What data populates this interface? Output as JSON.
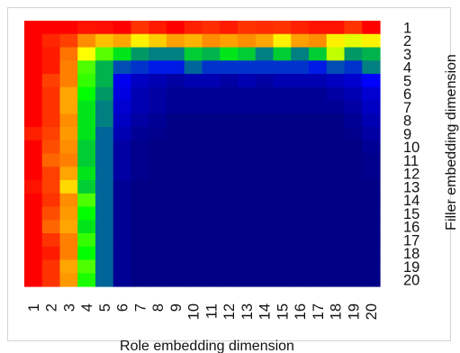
{
  "chart_data": {
    "type": "heatmap",
    "title": "",
    "xlabel": "Role embedding dimension",
    "ylabel": "Filler embedding dimension",
    "x_categories": [
      "1",
      "2",
      "3",
      "4",
      "5",
      "6",
      "7",
      "8",
      "9",
      "10",
      "11",
      "12",
      "13",
      "14",
      "15",
      "16",
      "17",
      "18",
      "19",
      "20"
    ],
    "y_categories": [
      "1",
      "2",
      "3",
      "4",
      "5",
      "6",
      "7",
      "8",
      "9",
      "10",
      "11",
      "12",
      "13",
      "14",
      "15",
      "16",
      "17",
      "18",
      "19",
      "20"
    ],
    "colorscale": [
      "#000066",
      "#0000ff",
      "#00ff00",
      "#ffff00",
      "#ff8000",
      "#ff0000"
    ],
    "grid": false,
    "legend": "none",
    "values": [
      [
        1.0,
        1.0,
        1.0,
        0.97,
        0.98,
        1.0,
        0.92,
        0.96,
        1.0,
        0.95,
        0.93,
        0.96,
        0.92,
        0.93,
        0.92,
        0.95,
        0.97,
        0.97,
        0.92,
        1.0
      ],
      [
        1.0,
        0.94,
        0.9,
        0.78,
        0.7,
        0.74,
        0.62,
        0.68,
        0.75,
        0.72,
        0.78,
        0.75,
        0.78,
        0.74,
        0.62,
        0.75,
        0.78,
        0.62,
        0.58,
        0.62
      ],
      [
        1.0,
        0.96,
        0.82,
        0.6,
        0.47,
        0.38,
        0.32,
        0.3,
        0.3,
        0.36,
        0.34,
        0.38,
        0.36,
        0.3,
        0.36,
        0.3,
        0.36,
        0.55,
        0.32,
        0.34
      ],
      [
        1.0,
        0.96,
        0.8,
        0.46,
        0.34,
        0.26,
        0.24,
        0.22,
        0.22,
        0.28,
        0.24,
        0.24,
        0.24,
        0.24,
        0.24,
        0.24,
        0.22,
        0.26,
        0.24,
        0.3
      ],
      [
        1.0,
        0.9,
        0.8,
        0.44,
        0.34,
        0.18,
        0.12,
        0.1,
        0.08,
        0.1,
        0.1,
        0.08,
        0.1,
        0.08,
        0.1,
        0.1,
        0.1,
        0.12,
        0.14,
        0.2
      ],
      [
        1.0,
        0.92,
        0.74,
        0.4,
        0.32,
        0.16,
        0.1,
        0.08,
        0.06,
        0.06,
        0.06,
        0.06,
        0.06,
        0.06,
        0.06,
        0.06,
        0.06,
        0.08,
        0.1,
        0.14
      ],
      [
        1.0,
        0.92,
        0.74,
        0.38,
        0.3,
        0.14,
        0.1,
        0.08,
        0.06,
        0.06,
        0.06,
        0.06,
        0.06,
        0.06,
        0.06,
        0.06,
        0.06,
        0.06,
        0.08,
        0.12
      ],
      [
        1.0,
        0.92,
        0.78,
        0.38,
        0.3,
        0.12,
        0.08,
        0.06,
        0.04,
        0.04,
        0.04,
        0.04,
        0.04,
        0.04,
        0.04,
        0.04,
        0.04,
        0.04,
        0.06,
        0.1
      ],
      [
        0.95,
        0.9,
        0.76,
        0.38,
        0.28,
        0.1,
        0.06,
        0.05,
        0.04,
        0.04,
        0.04,
        0.04,
        0.04,
        0.04,
        0.04,
        0.04,
        0.04,
        0.04,
        0.05,
        0.08
      ],
      [
        1.0,
        0.88,
        0.78,
        0.36,
        0.28,
        0.08,
        0.05,
        0.04,
        0.04,
        0.04,
        0.04,
        0.04,
        0.04,
        0.04,
        0.04,
        0.04,
        0.04,
        0.04,
        0.04,
        0.06
      ],
      [
        1.0,
        0.84,
        0.8,
        0.36,
        0.28,
        0.08,
        0.05,
        0.04,
        0.04,
        0.04,
        0.04,
        0.04,
        0.04,
        0.04,
        0.04,
        0.04,
        0.04,
        0.04,
        0.04,
        0.05
      ],
      [
        1.0,
        0.9,
        0.74,
        0.38,
        0.28,
        0.08,
        0.05,
        0.04,
        0.04,
        0.04,
        0.04,
        0.04,
        0.04,
        0.04,
        0.04,
        0.04,
        0.04,
        0.04,
        0.04,
        0.05
      ],
      [
        0.97,
        0.9,
        0.66,
        0.36,
        0.28,
        0.06,
        0.04,
        0.04,
        0.04,
        0.04,
        0.04,
        0.04,
        0.04,
        0.04,
        0.04,
        0.04,
        0.04,
        0.04,
        0.04,
        0.04
      ],
      [
        1.0,
        0.92,
        0.78,
        0.46,
        0.28,
        0.06,
        0.04,
        0.04,
        0.04,
        0.04,
        0.04,
        0.04,
        0.04,
        0.04,
        0.04,
        0.04,
        0.04,
        0.04,
        0.04,
        0.04
      ],
      [
        1.0,
        0.88,
        0.76,
        0.4,
        0.28,
        0.06,
        0.04,
        0.04,
        0.04,
        0.04,
        0.04,
        0.04,
        0.04,
        0.04,
        0.04,
        0.04,
        0.04,
        0.04,
        0.04,
        0.04
      ],
      [
        1.0,
        0.84,
        0.74,
        0.38,
        0.28,
        0.06,
        0.04,
        0.04,
        0.04,
        0.04,
        0.04,
        0.04,
        0.04,
        0.04,
        0.04,
        0.04,
        0.04,
        0.04,
        0.04,
        0.04
      ],
      [
        1.0,
        0.92,
        0.8,
        0.44,
        0.28,
        0.06,
        0.04,
        0.04,
        0.04,
        0.04,
        0.04,
        0.04,
        0.04,
        0.04,
        0.04,
        0.04,
        0.04,
        0.04,
        0.04,
        0.04
      ],
      [
        1.0,
        0.96,
        0.8,
        0.4,
        0.28,
        0.06,
        0.04,
        0.04,
        0.04,
        0.04,
        0.04,
        0.04,
        0.04,
        0.04,
        0.04,
        0.04,
        0.04,
        0.04,
        0.04,
        0.04
      ],
      [
        1.0,
        0.92,
        0.74,
        0.46,
        0.28,
        0.06,
        0.04,
        0.04,
        0.04,
        0.04,
        0.04,
        0.04,
        0.04,
        0.04,
        0.04,
        0.04,
        0.04,
        0.04,
        0.04,
        0.04
      ],
      [
        1.0,
        0.92,
        0.76,
        0.42,
        0.28,
        0.06,
        0.04,
        0.04,
        0.04,
        0.04,
        0.04,
        0.04,
        0.04,
        0.04,
        0.04,
        0.04,
        0.04,
        0.04,
        0.04,
        0.04
      ]
    ]
  }
}
